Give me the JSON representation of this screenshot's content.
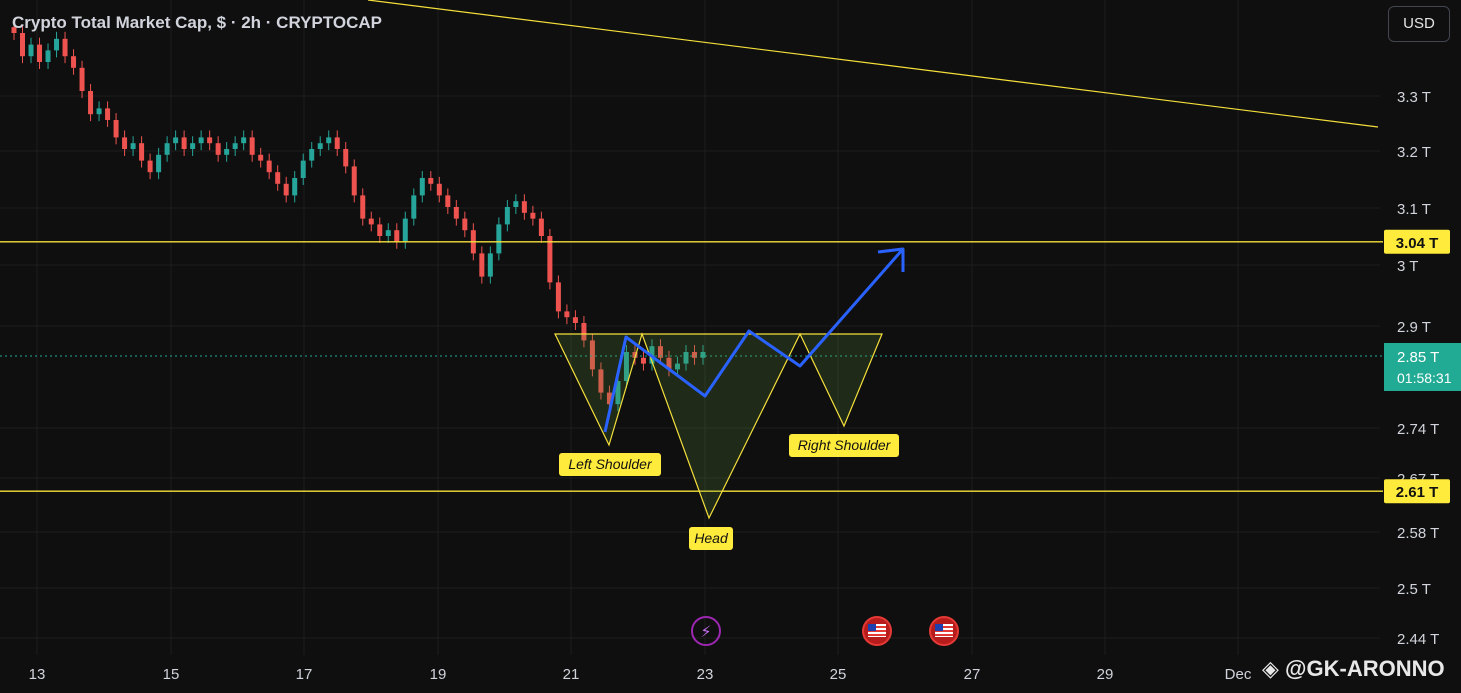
{
  "header": {
    "title": "Crypto Total Market Cap, $ · 2h · CRYPTOCAP",
    "currency_button": "USD"
  },
  "watermark": "@GK-ARONNO",
  "colors": {
    "background": "#0f0f0f",
    "grid": "#1e1e1e",
    "up_candle": "#26a69a",
    "down_candle": "#ef5350",
    "level_line": "#f5e03b",
    "projection": "#2962ff",
    "current_price": "#22ab94"
  },
  "chart_data": {
    "type": "candlestick",
    "symbol": "CRYPTOCAP",
    "interval": "2h",
    "y_axis_ticks": [
      "3.3 T",
      "3.2 T",
      "3.1 T",
      "3 T",
      "2.9 T",
      "2.74 T",
      "2.67 T",
      "2.58 T",
      "2.5 T",
      "2.44 T"
    ],
    "x_axis_ticks": [
      "13",
      "15",
      "17",
      "19",
      "21",
      "23",
      "25",
      "27",
      "29",
      "Dec"
    ],
    "price_labels": [
      {
        "value": "3.04 T",
        "kind": "resistance"
      },
      {
        "value": "2.61 T",
        "kind": "support"
      }
    ],
    "current_price": {
      "value": "2.85 T",
      "countdown": "01:58:31"
    },
    "pattern": "inverse head and shoulders",
    "annotations": [
      "Left Shoulder",
      "Head",
      "Right Shoulder"
    ],
    "candles_close": [
      3.4,
      3.36,
      3.38,
      3.35,
      3.37,
      3.39,
      3.36,
      3.34,
      3.3,
      3.26,
      3.27,
      3.25,
      3.22,
      3.2,
      3.21,
      3.18,
      3.16,
      3.19,
      3.21,
      3.22,
      3.2,
      3.21,
      3.22,
      3.21,
      3.19,
      3.2,
      3.21,
      3.22,
      3.19,
      3.18,
      3.16,
      3.14,
      3.12,
      3.15,
      3.18,
      3.2,
      3.21,
      3.22,
      3.2,
      3.17,
      3.12,
      3.08,
      3.07,
      3.05,
      3.06,
      3.04,
      3.08,
      3.12,
      3.15,
      3.14,
      3.12,
      3.1,
      3.08,
      3.06,
      3.02,
      2.98,
      3.02,
      3.07,
      3.1,
      3.11,
      3.09,
      3.08,
      3.05,
      2.97,
      2.92,
      2.91,
      2.9,
      2.87,
      2.82,
      2.78,
      2.76,
      2.8,
      2.85,
      2.84,
      2.83,
      2.86,
      2.84,
      2.82,
      2.83,
      2.85,
      2.84,
      2.85
    ]
  },
  "event_icons": [
    "lightning-icon",
    "us-flag-icon",
    "us-flag-icon"
  ]
}
